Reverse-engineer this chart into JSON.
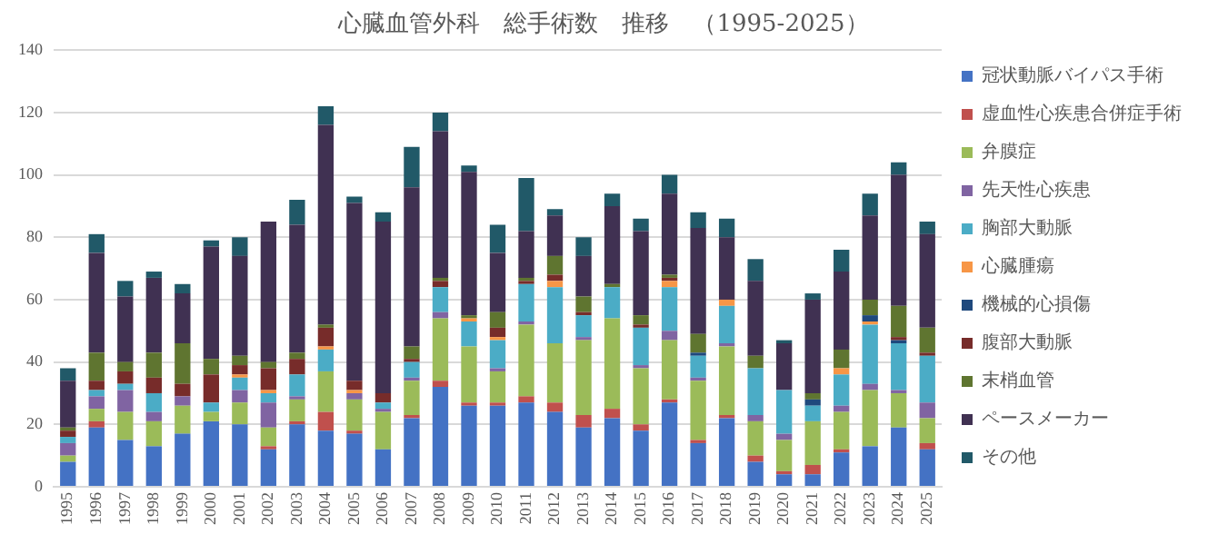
{
  "chart_data": {
    "type": "bar",
    "title": "心臓血管外科　総手術数　推移　（1995-2025）",
    "stacked": true,
    "grid": "y",
    "legend": "right",
    "categories": [
      "1995",
      "1996",
      "1997",
      "1998",
      "1999",
      "2000",
      "2001",
      "2002",
      "2003",
      "2004",
      "2005",
      "2006",
      "2007",
      "2008",
      "2009",
      "2010",
      "2011",
      "2012",
      "2013",
      "2014",
      "2015",
      "2016",
      "2017",
      "2018",
      "2019",
      "2020",
      "2021",
      "2022",
      "2023",
      "2024",
      "2025"
    ],
    "ylim": [
      0,
      140
    ],
    "yticks": [
      0,
      20,
      40,
      60,
      80,
      100,
      120,
      140
    ],
    "series": [
      {
        "name": "冠状動脈バイパス手術",
        "color": "#4472c4",
        "values": [
          8,
          19,
          15,
          13,
          17,
          21,
          20,
          12,
          20,
          18,
          17,
          12,
          22,
          32,
          26,
          26,
          27,
          24,
          19,
          22,
          18,
          27,
          14,
          22,
          8,
          4,
          4,
          11,
          13,
          19,
          12
        ]
      },
      {
        "name": "虚血性心疾患合併症手術",
        "color": "#c0504d",
        "values": [
          0,
          2,
          0,
          0,
          0,
          0,
          0,
          1,
          1,
          6,
          1,
          0,
          1,
          2,
          1,
          1,
          2,
          3,
          4,
          3,
          2,
          1,
          1,
          1,
          2,
          1,
          3,
          1,
          0,
          0,
          2
        ]
      },
      {
        "name": "弁膜症",
        "color": "#9bbb59",
        "values": [
          2,
          4,
          9,
          8,
          9,
          3,
          7,
          6,
          7,
          13,
          10,
          12,
          11,
          20,
          18,
          10,
          23,
          19,
          24,
          29,
          18,
          19,
          19,
          22,
          11,
          10,
          14,
          12,
          18,
          11,
          8
        ]
      },
      {
        "name": "先天性心疾患",
        "color": "#8064a2",
        "values": [
          4,
          4,
          7,
          3,
          3,
          0,
          4,
          8,
          1,
          0,
          2,
          1,
          1,
          2,
          0,
          1,
          1,
          0,
          1,
          0,
          1,
          3,
          1,
          1,
          2,
          2,
          0,
          2,
          2,
          1,
          5
        ]
      },
      {
        "name": "胸部大動脈",
        "color": "#4bacc6",
        "values": [
          2,
          2,
          2,
          6,
          0,
          3,
          4,
          3,
          7,
          7,
          0,
          2,
          5,
          8,
          8,
          9,
          12,
          18,
          7,
          10,
          12,
          14,
          7,
          12,
          15,
          14,
          5,
          10,
          19,
          15,
          15
        ]
      },
      {
        "name": "心臓腫瘍",
        "color": "#f79646",
        "values": [
          0,
          0,
          0,
          0,
          0,
          0,
          1,
          1,
          0,
          1,
          1,
          0,
          0,
          0,
          1,
          1,
          0,
          2,
          0,
          0,
          0,
          2,
          0,
          2,
          0,
          0,
          0,
          2,
          1,
          0,
          0
        ]
      },
      {
        "name": "機械的心損傷",
        "color": "#1f497d",
        "values": [
          0,
          0,
          0,
          0,
          0,
          0,
          0,
          0,
          0,
          0,
          0,
          0,
          0,
          0,
          0,
          0,
          0,
          0,
          0,
          0,
          0,
          0,
          1,
          0,
          0,
          0,
          2,
          0,
          2,
          1,
          0
        ]
      },
      {
        "name": "腹部大動脈",
        "color": "#772c2a",
        "values": [
          2,
          3,
          4,
          5,
          4,
          9,
          3,
          7,
          5,
          6,
          3,
          3,
          1,
          2,
          0,
          3,
          1,
          2,
          1,
          0,
          1,
          1,
          0,
          0,
          0,
          0,
          0,
          0,
          0,
          1,
          1
        ]
      },
      {
        "name": "末梢血管",
        "color": "#5f7530",
        "values": [
          1,
          9,
          3,
          8,
          13,
          5,
          3,
          2,
          2,
          1,
          0,
          0,
          4,
          1,
          1,
          5,
          1,
          6,
          5,
          1,
          3,
          1,
          6,
          0,
          4,
          0,
          2,
          6,
          5,
          10,
          8
        ]
      },
      {
        "name": "ペースメーカー",
        "color": "#403152",
        "values": [
          15,
          32,
          21,
          24,
          16,
          36,
          32,
          45,
          41,
          64,
          57,
          55,
          51,
          47,
          46,
          19,
          15,
          13,
          13,
          25,
          27,
          26,
          34,
          20,
          24,
          15,
          30,
          25,
          27,
          42,
          30
        ]
      },
      {
        "name": "その他",
        "color": "#215968",
        "values": [
          4,
          6,
          5,
          2,
          3,
          2,
          6,
          0,
          8,
          6,
          2,
          3,
          13,
          6,
          2,
          9,
          17,
          2,
          6,
          4,
          4,
          6,
          5,
          6,
          7,
          1,
          2,
          7,
          7,
          4,
          4
        ]
      }
    ]
  }
}
